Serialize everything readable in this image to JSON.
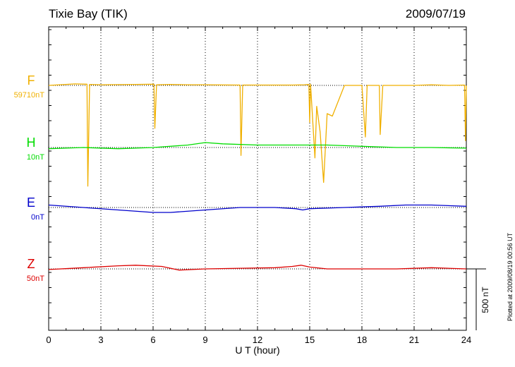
{
  "header": {
    "station": "Tixie Bay (TIK)",
    "date": "2009/07/19"
  },
  "side_note": "Plotted at 2009/08/19 00:56 UT",
  "chart_data": {
    "type": "line",
    "xlabel": "U T (hour)",
    "xlim": [
      0,
      24
    ],
    "x_ticks": [
      "0",
      "3",
      "6",
      "9",
      "12",
      "15",
      "18",
      "21",
      "24"
    ],
    "vertical_grid": true,
    "scale_bar_label": "500 nT",
    "series": [
      {
        "name": "F",
        "baseline_label": "59710nT",
        "color": "#f0b000",
        "baseline_nT": 59710,
        "x": [
          0,
          1.5,
          2.2,
          2.25,
          2.35,
          3,
          5,
          6.05,
          6.1,
          6.2,
          7,
          8,
          9,
          11,
          11.05,
          11.15,
          12,
          14,
          14.7,
          14.95,
          15,
          15.05,
          15.3,
          15.4,
          15.6,
          15.8,
          16,
          16.3,
          17,
          18,
          18.2,
          18.3,
          19,
          19.05,
          19.2,
          20,
          21,
          22,
          23,
          23.9,
          23.95,
          24
        ],
        "deviation_nT": [
          0,
          12,
          10,
          -820,
          8,
          5,
          8,
          10,
          -350,
          5,
          8,
          5,
          5,
          3,
          -570,
          3,
          3,
          3,
          5,
          8,
          -300,
          10,
          -590,
          -170,
          -380,
          -790,
          -230,
          -250,
          0,
          0,
          -420,
          0,
          0,
          -400,
          0,
          0,
          0,
          5,
          0,
          3,
          -450,
          0
        ]
      },
      {
        "name": "H",
        "baseline_label": "10nT",
        "color": "#00dd00",
        "baseline_nT": 10,
        "x": [
          0,
          2,
          4,
          6,
          8,
          9,
          10,
          12,
          14,
          16,
          18,
          20,
          22,
          24
        ],
        "deviation_nT": [
          -10,
          0,
          -10,
          0,
          20,
          40,
          30,
          20,
          20,
          20,
          10,
          0,
          0,
          -5
        ]
      },
      {
        "name": "E",
        "baseline_label": "0nT",
        "color": "#0000cc",
        "baseline_nT": 0,
        "x": [
          0,
          2,
          4,
          6,
          7,
          9,
          11,
          13,
          14.2,
          14.6,
          15,
          17,
          19,
          20.5,
          22,
          24
        ],
        "deviation_nT": [
          20,
          0,
          -20,
          -40,
          -40,
          -20,
          0,
          0,
          -10,
          -20,
          -10,
          0,
          10,
          20,
          20,
          10
        ]
      },
      {
        "name": "Z",
        "baseline_label": "50nT",
        "color": "#dd0000",
        "baseline_nT": 50,
        "x": [
          0,
          2,
          4,
          5,
          6.5,
          7.5,
          9,
          11,
          13,
          14,
          14.5,
          15,
          16,
          18,
          20,
          22,
          24
        ],
        "deviation_nT": [
          -5,
          10,
          25,
          30,
          20,
          -10,
          0,
          5,
          10,
          20,
          30,
          15,
          0,
          0,
          0,
          10,
          0
        ]
      }
    ]
  }
}
